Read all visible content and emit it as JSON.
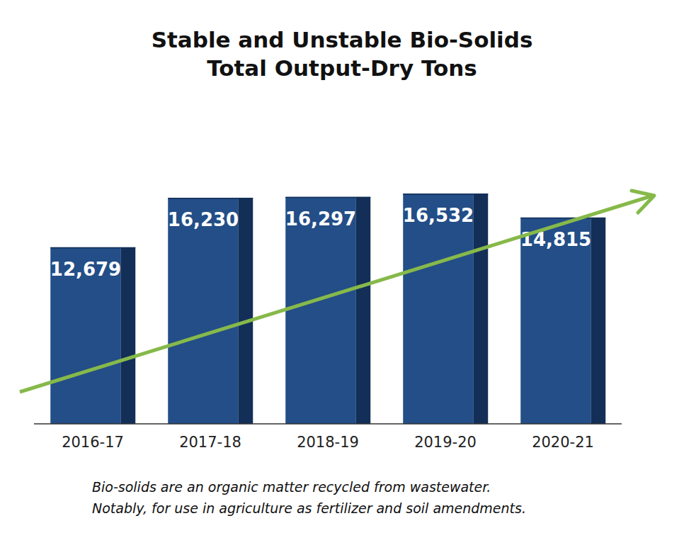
{
  "chart_data": {
    "type": "bar",
    "title": "Stable and Unstable Bio-Solids",
    "subtitle": "Total Output-Dry Tons",
    "categories": [
      "2016-17",
      "2017-18",
      "2018-19",
      "2019-20",
      "2020-21"
    ],
    "values": [
      12679,
      16230,
      16297,
      16532,
      14815
    ],
    "value_labels": [
      "12,679",
      "16,230",
      "16,297",
      "16,532",
      "14,815"
    ],
    "color": "#234e87",
    "ylim": [
      0,
      20000
    ],
    "data_labels": true,
    "tick_labels": "x",
    "grid": false,
    "annotations": [
      "Bio-solids are an organic matter recycled from wastewater.",
      "Notably, for use in agriculture as fertilizer and soil amendments."
    ]
  }
}
